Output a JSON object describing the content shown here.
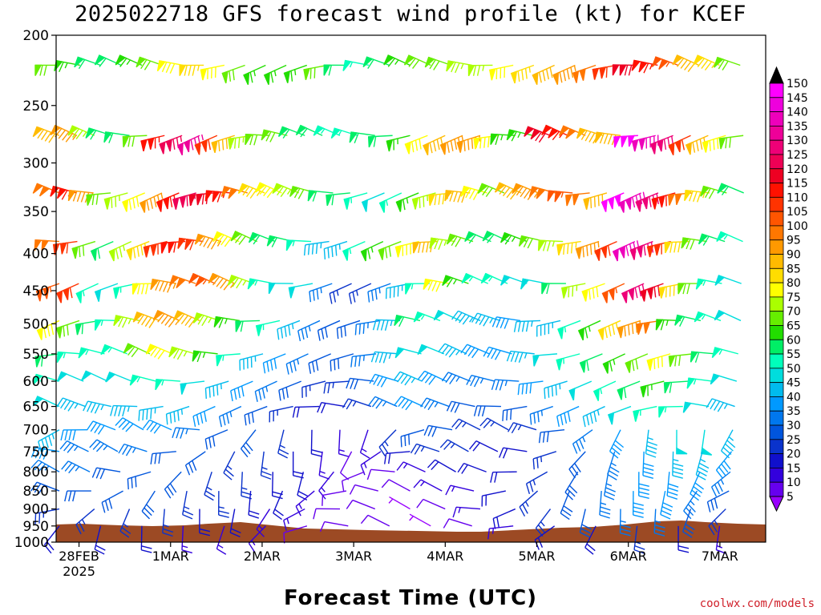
{
  "chart_data": {
    "type": "wind-barb-profile",
    "title": "2025022718 GFS forecast wind profile (kt) for KCEF",
    "xlabel": "Forecast Time (UTC)",
    "ylabel": "",
    "y_scale": "log",
    "ylim": [
      1000,
      200
    ],
    "y_ticks": [
      200,
      250,
      300,
      350,
      400,
      450,
      500,
      550,
      600,
      650,
      700,
      750,
      800,
      850,
      900,
      950,
      1000
    ],
    "x_ticks": [
      {
        "label": "28FEB",
        "sub": "2025",
        "hours": 6
      },
      {
        "label": "1MAR",
        "sub": "",
        "hours": 30
      },
      {
        "label": "2MAR",
        "sub": "",
        "hours": 54
      },
      {
        "label": "3MAR",
        "sub": "",
        "hours": 78
      },
      {
        "label": "4MAR",
        "sub": "",
        "hours": 102
      },
      {
        "label": "5MAR",
        "sub": "",
        "hours": 126
      },
      {
        "label": "6MAR",
        "sub": "",
        "hours": 150
      },
      {
        "label": "7MAR",
        "sub": "",
        "hours": 174
      }
    ],
    "colorbar": {
      "levels": [
        5,
        10,
        15,
        20,
        25,
        30,
        35,
        40,
        45,
        50,
        55,
        60,
        65,
        70,
        75,
        80,
        85,
        90,
        95,
        100,
        105,
        110,
        115,
        120,
        125,
        130,
        135,
        140,
        145,
        150
      ],
      "colors": [
        "#9900ff",
        "#6600ee",
        "#3300dd",
        "#1010cc",
        "#0a33cc",
        "#0055dd",
        "#0077ee",
        "#0099ff",
        "#00bbee",
        "#00dddd",
        "#00ffbb",
        "#00ee66",
        "#22dd00",
        "#66ee00",
        "#aaff00",
        "#ffff00",
        "#ffdd00",
        "#ffbb00",
        "#ff9900",
        "#ff7700",
        "#ff5500",
        "#ff3300",
        "#ff1100",
        "#ee0022",
        "#ee0055",
        "#ee0077",
        "#ee0099",
        "#ee00bb",
        "#ee00dd",
        "#ff00ff"
      ],
      "under_color": "#9900ff",
      "over_color": "#000000"
    },
    "terrain_color": "#9c4a24",
    "note_rows": [
      {
        "p": 220,
        "speeds": [
          70,
          65,
          60,
          60,
          65,
          70,
          80,
          85,
          80,
          70,
          65,
          65,
          65,
          70,
          60,
          55,
          60,
          65,
          70,
          70,
          75,
          75,
          80,
          85,
          90,
          95,
          100,
          110,
          120,
          115,
          105,
          90,
          85,
          70
        ]
      },
      {
        "p": 275,
        "speeds": [
          90,
          95,
          75,
          60,
          60,
          70,
          115,
          125,
          135,
          110,
          90,
          75,
          70,
          70,
          60,
          60,
          55,
          55,
          60,
          60,
          65,
          80,
          90,
          95,
          95,
          80,
          65,
          65,
          120,
          115,
          100,
          90,
          90,
          150,
          140,
          130,
          110,
          90,
          80,
          70
        ]
      },
      {
        "p": 330,
        "speeds": [
          100,
          115,
          95,
          70,
          75,
          80,
          95,
          115,
          125,
          120,
          115,
          100,
          85,
          80,
          75,
          70,
          60,
          60,
          55,
          50,
          55,
          65,
          75,
          85,
          90,
          80,
          70,
          90,
          95,
          100,
          105,
          100,
          90,
          150,
          140,
          130,
          115,
          100,
          85,
          70,
          60
        ]
      },
      {
        "p": 385,
        "speeds": [
          100,
          110,
          70,
          60,
          75,
          85,
          110,
          115,
          110,
          95,
          80,
          70,
          60,
          60,
          55,
          45,
          45,
          55,
          65,
          70,
          80,
          90,
          75,
          70,
          60,
          60,
          65,
          70,
          75,
          85,
          95,
          110,
          140,
          130,
          110,
          85,
          70,
          60,
          55
        ]
      },
      {
        "p": 440,
        "speeds": [
          105,
          110,
          55,
          50,
          55,
          80,
          95,
          100,
          105,
          95,
          75,
          55,
          50,
          50,
          35,
          25,
          25,
          35,
          45,
          55,
          80,
          65,
          55,
          55,
          50,
          50,
          60,
          75,
          80,
          105,
          130,
          120,
          85,
          70,
          55,
          50
        ]
      },
      {
        "p": 495,
        "speeds": [
          80,
          70,
          60,
          55,
          75,
          90,
          95,
          90,
          75,
          65,
          60,
          55,
          45,
          35,
          30,
          30,
          35,
          45,
          60,
          55,
          50,
          45,
          45,
          40,
          45,
          45,
          55,
          65,
          85,
          95,
          100,
          65,
          60,
          55,
          50
        ]
      },
      {
        "p": 550,
        "speeds": [
          60,
          55,
          55,
          55,
          70,
          80,
          75,
          65,
          55,
          45,
          40,
          35,
          30,
          30,
          35,
          45,
          50,
          50,
          45,
          40,
          40,
          45,
          50,
          55,
          60,
          65,
          70,
          80,
          70,
          60,
          55
        ]
      },
      {
        "p": 600,
        "speeds": [
          55,
          50,
          50,
          50,
          55,
          55,
          50,
          45,
          40,
          35,
          30,
          25,
          25,
          30,
          40,
          45,
          40,
          35,
          35,
          35,
          40,
          45,
          50,
          55,
          60,
          65,
          60,
          55,
          50
        ]
      },
      {
        "p": 650,
        "speeds": [
          50,
          45,
          45,
          45,
          45,
          45,
          40,
          35,
          30,
          25,
          20,
          20,
          25,
          35,
          40,
          35,
          30,
          30,
          30,
          35,
          40,
          45,
          50,
          55,
          55,
          50,
          45
        ]
      },
      {
        "p": 700,
        "speeds": [
          45,
          40,
          40,
          40,
          40,
          35,
          30,
          30,
          25,
          20,
          15,
          15,
          25,
          30,
          30,
          25,
          25,
          25,
          30,
          35,
          40,
          45,
          50,
          50,
          45
        ]
      },
      {
        "p": 750,
        "speeds": [
          40,
          35,
          35,
          35,
          30,
          30,
          25,
          25,
          20,
          15,
          10,
          15,
          20,
          25,
          25,
          20,
          20,
          25,
          30,
          35,
          40,
          45,
          45,
          40
        ]
      },
      {
        "p": 800,
        "speeds": [
          35,
          35,
          30,
          30,
          30,
          25,
          25,
          20,
          20,
          15,
          10,
          10,
          15,
          20,
          20,
          20,
          25,
          30,
          35,
          40,
          40,
          40,
          35
        ]
      },
      {
        "p": 850,
        "speeds": [
          30,
          30,
          30,
          30,
          25,
          25,
          20,
          20,
          15,
          10,
          10,
          10,
          15,
          15,
          20,
          25,
          30,
          35,
          40,
          40,
          35,
          30
        ]
      },
      {
        "p": 900,
        "speeds": [
          25,
          25,
          25,
          25,
          20,
          20,
          15,
          15,
          10,
          10,
          5,
          10,
          15,
          20,
          25,
          30,
          35,
          35,
          30,
          25
        ]
      },
      {
        "p": 950,
        "speeds": [
          20,
          20,
          20,
          15,
          15,
          15,
          10,
          10,
          10,
          5,
          10,
          15,
          20,
          20,
          25,
          20,
          15
        ]
      }
    ]
  }
}
